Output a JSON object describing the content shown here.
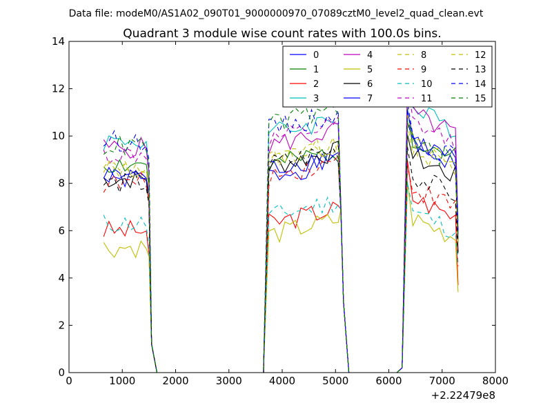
{
  "chart_data": {
    "type": "line",
    "suptitle": "Data file: modeM0/AS1A02_090T01_9000000970_07089cztM0_level2_quad_clean.evt",
    "title": "Quadrant 3 module wise count rates with 100.0s bins.",
    "xlabel": "",
    "ylabel": "",
    "xlim": [
      0,
      8000
    ],
    "ylim": [
      0,
      14
    ],
    "x_offset_label": "+2.22479e8",
    "x_ticks": [
      0,
      1000,
      2000,
      3000,
      4000,
      5000,
      6000,
      7000,
      8000
    ],
    "y_ticks": [
      0,
      2,
      4,
      6,
      8,
      10,
      12,
      14
    ],
    "legend": {
      "position": "top-right",
      "columns": 4
    },
    "segments": [
      {
        "start": 650,
        "end": 1450,
        "step": 100,
        "n": 9
      },
      {
        "start": 3750,
        "end": 5050,
        "step": 100,
        "n": 14
      },
      {
        "start": 6350,
        "end": 7250,
        "step": 100,
        "n": 10
      }
    ],
    "series": [
      {
        "name": "0",
        "color": "#0000ff",
        "dash": false,
        "level": [
          8.2,
          8.3,
          9.7
        ],
        "end": [
          7.2,
          6.8,
          5.5
        ]
      },
      {
        "name": "1",
        "color": "#008000",
        "dash": false,
        "level": [
          8.8,
          8.7,
          10.0
        ],
        "end": [
          8.0,
          6.9,
          5.6
        ]
      },
      {
        "name": "2",
        "color": "#ff0000",
        "dash": false,
        "level": [
          6.0,
          6.3,
          7.5
        ],
        "end": [
          5.0,
          6.9,
          3.7
        ]
      },
      {
        "name": "3",
        "color": "#00bfbf",
        "dash": false,
        "level": [
          9.8,
          10.1,
          11.2
        ],
        "end": [
          8.5,
          7.0,
          6.4
        ]
      },
      {
        "name": "4",
        "color": "#bf00bf",
        "dash": false,
        "level": [
          9.5,
          9.6,
          11.0
        ],
        "end": [
          8.4,
          7.0,
          6.0
        ]
      },
      {
        "name": "5",
        "color": "#bfbf00",
        "dash": false,
        "level": [
          5.3,
          5.8,
          6.6
        ],
        "end": [
          4.9,
          6.9,
          3.4
        ]
      },
      {
        "name": "6",
        "color": "#000000",
        "dash": false,
        "level": [
          8.2,
          8.7,
          9.2
        ],
        "end": [
          7.2,
          6.9,
          5.1
        ]
      },
      {
        "name": "7",
        "color": "#0000ff",
        "dash": false,
        "level": [
          8.3,
          8.6,
          9.9
        ],
        "end": [
          7.6,
          6.9,
          5.8
        ]
      },
      {
        "name": "8",
        "color": "#bfbf00",
        "dash": true,
        "level": [
          8.7,
          8.9,
          9.5
        ],
        "end": [
          7.8,
          7.0,
          5.4
        ]
      },
      {
        "name": "9",
        "color": "#ff0000",
        "dash": true,
        "level": [
          8.0,
          8.3,
          7.9
        ],
        "end": [
          7.3,
          6.9,
          4.5
        ]
      },
      {
        "name": "10",
        "color": "#00bfbf",
        "dash": true,
        "level": [
          6.3,
          6.6,
          6.9
        ],
        "end": [
          5.4,
          6.9,
          4.6
        ]
      },
      {
        "name": "11",
        "color": "#bf00bf",
        "dash": true,
        "level": [
          9.2,
          9.8,
          10.6
        ],
        "end": [
          8.6,
          7.0,
          5.9
        ]
      },
      {
        "name": "12",
        "color": "#bfbf00",
        "dash": true,
        "level": [
          8.6,
          9.0,
          9.7
        ],
        "end": [
          7.8,
          7.0,
          5.5
        ]
      },
      {
        "name": "13",
        "color": "#000000",
        "dash": true,
        "level": [
          8.0,
          8.8,
          8.4
        ],
        "end": [
          7.1,
          6.9,
          5.0
        ]
      },
      {
        "name": "14",
        "color": "#0000ff",
        "dash": true,
        "level": [
          9.8,
          10.3,
          10.0
        ],
        "end": [
          9.0,
          7.1,
          6.0
        ]
      },
      {
        "name": "15",
        "color": "#008000",
        "dash": true,
        "level": [
          9.6,
          10.5,
          9.8
        ],
        "end": [
          8.8,
          7.1,
          5.7
        ]
      }
    ]
  }
}
